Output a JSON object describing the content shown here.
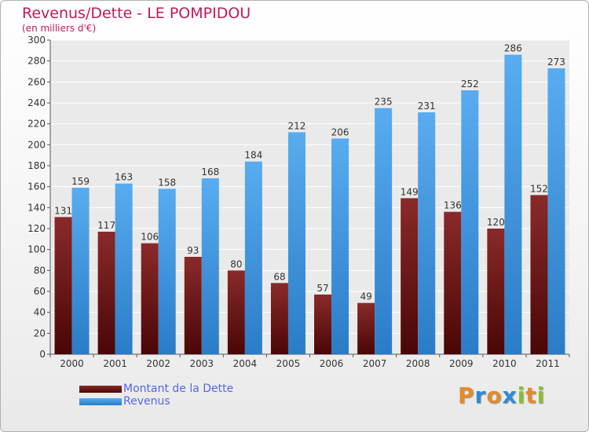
{
  "chart_data": {
    "type": "bar",
    "title": "Revenus/Dette - LE POMPIDOU",
    "subtitle": "(en milliers d'€)",
    "categories": [
      "2000",
      "2001",
      "2002",
      "2003",
      "2004",
      "2005",
      "2006",
      "2007",
      "2008",
      "2009",
      "2010",
      "2011"
    ],
    "series": [
      {
        "name": "Montant de la Dette",
        "values": [
          131,
          117,
          106,
          93,
          80,
          68,
          57,
          49,
          149,
          136,
          120,
          152
        ],
        "color": "#6e1414"
      },
      {
        "name": "Revenus",
        "values": [
          159,
          163,
          158,
          168,
          184,
          212,
          206,
          235,
          231,
          252,
          286,
          273
        ],
        "color": "#3d95e0"
      }
    ],
    "ylim": [
      0,
      300
    ],
    "yticks": [
      0,
      20,
      40,
      60,
      80,
      100,
      120,
      140,
      160,
      180,
      200,
      220,
      240,
      260,
      280,
      300
    ],
    "grid": true,
    "legend": "bottom-left"
  },
  "logo": {
    "letters": [
      "P",
      "r",
      "o",
      "x",
      "i",
      "t",
      "i"
    ],
    "colors": [
      "#e38b2c",
      "#2e8bd8",
      "#e38b2c",
      "#2e8bd8",
      "#8bbf2b",
      "#e38b2c",
      "#8bbf2b"
    ]
  }
}
